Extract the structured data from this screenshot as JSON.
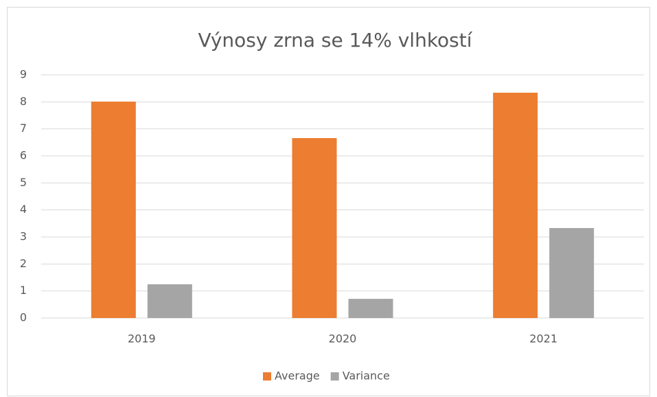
{
  "chart_data": {
    "type": "bar",
    "title": "Výnosy zrna se 14% vlhkostí",
    "categories": [
      "2019",
      "2020",
      "2021"
    ],
    "series": [
      {
        "name": "Average",
        "color": "#ed7d31",
        "values": [
          8.01,
          6.66,
          8.34
        ]
      },
      {
        "name": "Variance",
        "color": "#a5a5a5",
        "values": [
          1.25,
          0.71,
          3.33
        ]
      }
    ],
    "ylim": [
      0,
      9
    ],
    "yticks": [
      0,
      1,
      2,
      3,
      4,
      5,
      6,
      7,
      8,
      9
    ],
    "grid": true,
    "legend": "bottom"
  }
}
